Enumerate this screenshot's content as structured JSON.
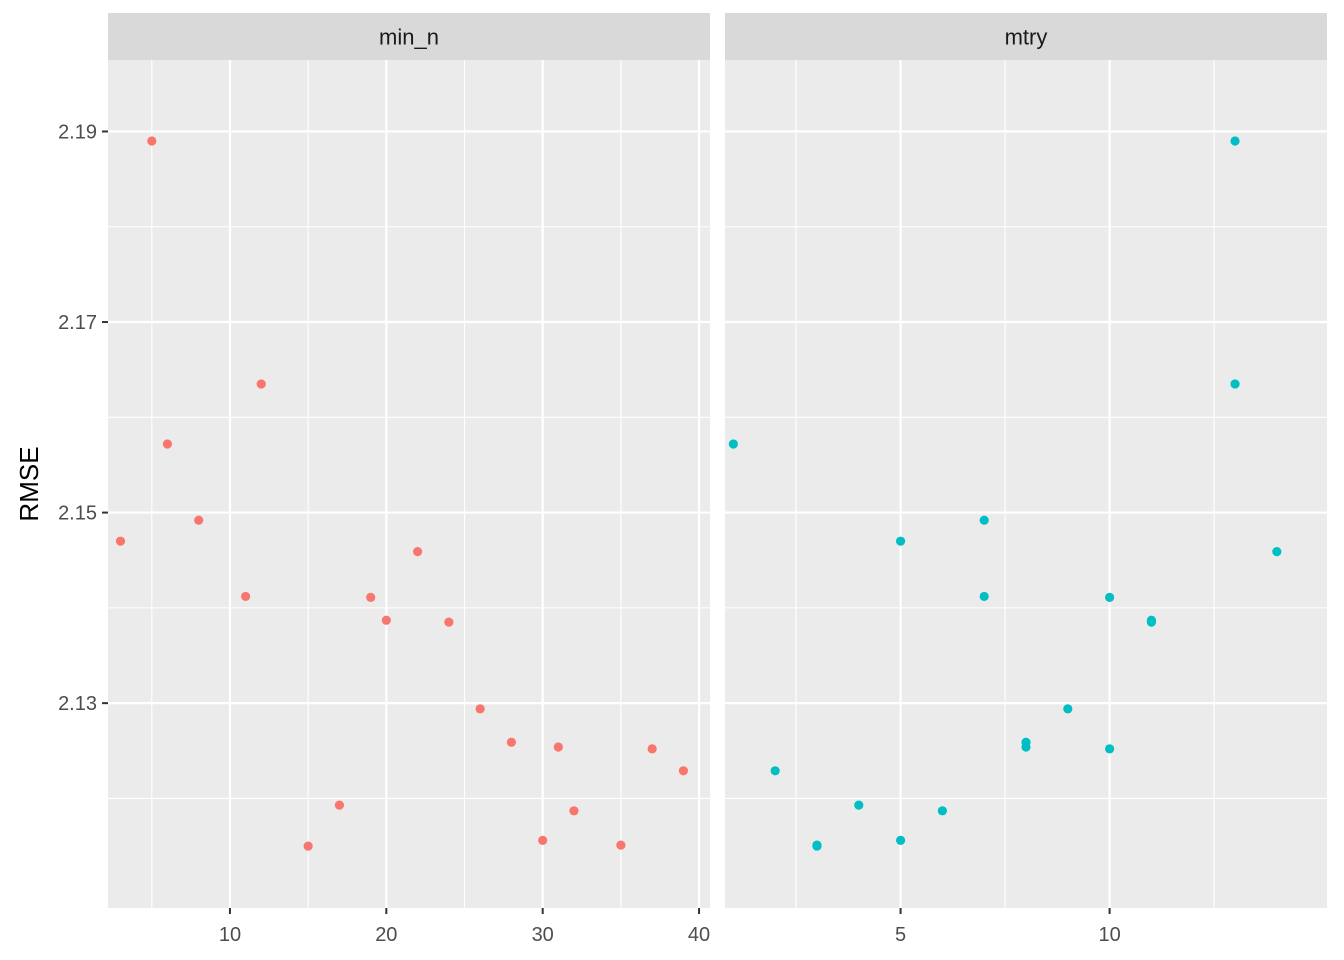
{
  "chart_data": {
    "type": "scatter",
    "ylabel": "RMSE",
    "xlabel": "",
    "ylim": [
      2.1085,
      2.1975
    ],
    "y_ticks": [
      2.13,
      2.15,
      2.17,
      2.19
    ],
    "y_tick_labels": [
      "2.13",
      "2.15",
      "2.17",
      "2.19"
    ],
    "grid": true,
    "legend": "none",
    "panels": [
      {
        "name": "min_n",
        "color": "#F8766D",
        "xlim": [
          2.2,
          40.7
        ],
        "x_ticks": [
          10,
          20,
          30,
          40
        ],
        "x_tick_labels": [
          "10",
          "20",
          "30",
          "40"
        ],
        "points": [
          {
            "x": 3,
            "y": 2.147
          },
          {
            "x": 5,
            "y": 2.189
          },
          {
            "x": 6,
            "y": 2.1572
          },
          {
            "x": 8,
            "y": 2.1492
          },
          {
            "x": 11,
            "y": 2.1412
          },
          {
            "x": 12,
            "y": 2.1635
          },
          {
            "x": 15,
            "y": 2.115
          },
          {
            "x": 17,
            "y": 2.1193
          },
          {
            "x": 19,
            "y": 2.1411
          },
          {
            "x": 20,
            "y": 2.1387
          },
          {
            "x": 22,
            "y": 2.1459
          },
          {
            "x": 24,
            "y": 2.1385
          },
          {
            "x": 26,
            "y": 2.1294
          },
          {
            "x": 28,
            "y": 2.1259
          },
          {
            "x": 30,
            "y": 2.1156
          },
          {
            "x": 31,
            "y": 2.1254
          },
          {
            "x": 32,
            "y": 2.1187
          },
          {
            "x": 35,
            "y": 2.1151
          },
          {
            "x": 37,
            "y": 2.1252
          },
          {
            "x": 39,
            "y": 2.1229
          }
        ]
      },
      {
        "name": "mtry",
        "color": "#00BFC4",
        "xlim": [
          0.8,
          15.2
        ],
        "x_ticks": [
          5,
          10
        ],
        "x_tick_labels": [
          "5",
          "10"
        ],
        "points": [
          {
            "x": 1,
            "y": 2.1572
          },
          {
            "x": 2,
            "y": 2.1229
          },
          {
            "x": 3,
            "y": 2.115
          },
          {
            "x": 3,
            "y": 2.1151
          },
          {
            "x": 4,
            "y": 2.1193
          },
          {
            "x": 5,
            "y": 2.147
          },
          {
            "x": 5,
            "y": 2.1156
          },
          {
            "x": 6,
            "y": 2.1187
          },
          {
            "x": 7,
            "y": 2.1492
          },
          {
            "x": 7,
            "y": 2.1412
          },
          {
            "x": 8,
            "y": 2.1259
          },
          {
            "x": 8,
            "y": 2.1254
          },
          {
            "x": 9,
            "y": 2.1294
          },
          {
            "x": 10,
            "y": 2.1411
          },
          {
            "x": 10,
            "y": 2.1252
          },
          {
            "x": 11,
            "y": 2.1387
          },
          {
            "x": 11,
            "y": 2.1385
          },
          {
            "x": 13,
            "y": 2.189
          },
          {
            "x": 13,
            "y": 2.1635
          },
          {
            "x": 14,
            "y": 2.1459
          }
        ]
      }
    ]
  }
}
